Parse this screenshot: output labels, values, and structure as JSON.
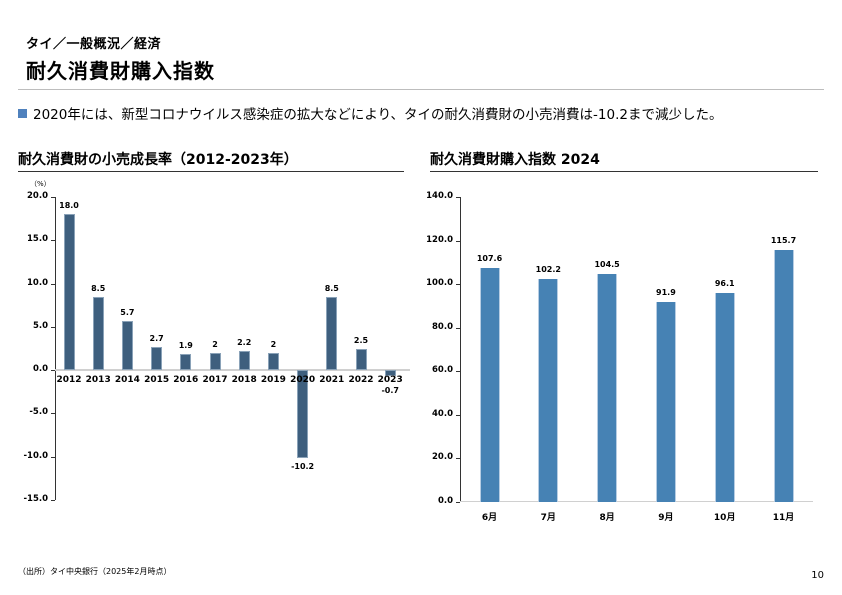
{
  "header": {
    "breadcrumb": "タイ／一般概況／経済",
    "title": "耐久消費財購入指数"
  },
  "summary": {
    "bullet_color": "#4f81bd",
    "text": "2020年には、新型コロナウイルス感染症の拡大などにより、タイの耐久消費財の小売消費は-10.2まで減少した。"
  },
  "left_chart": {
    "title": "耐久消費財の小売成長率（2012-2023年）",
    "unit": "（%）",
    "y_ticks": [
      "20.0",
      "15.0",
      "10.0",
      "5.0",
      "0.0",
      "-5.0",
      "-10.0",
      "-15.0"
    ]
  },
  "right_chart": {
    "title": "耐久消費財購入指数 2024",
    "y_ticks": [
      "140.0",
      "120.0",
      "100.0",
      "80.0",
      "60.0",
      "40.0",
      "20.0",
      "0.0"
    ]
  },
  "chart_data": [
    {
      "type": "bar",
      "title": "耐久消費財の小売成長率（2012-2023年）",
      "xlabel": "",
      "ylabel": "（%）",
      "categories": [
        "2012",
        "2013",
        "2014",
        "2015",
        "2016",
        "2017",
        "2018",
        "2019",
        "2020",
        "2021",
        "2022",
        "2023"
      ],
      "values": [
        18.0,
        8.5,
        5.7,
        2.7,
        1.9,
        2,
        2.2,
        2,
        -10.2,
        8.5,
        2.5,
        -0.7
      ],
      "value_labels": [
        "18.0",
        "8.5",
        "5.7",
        "2.7",
        "1.9",
        "2",
        "2.2",
        "2",
        "-10.2",
        "8.5",
        "2.5",
        "-0.7"
      ],
      "ylim": [
        -15.0,
        20.0
      ],
      "y_tick_step": 5.0,
      "grid": false,
      "legend": null,
      "color": "#3e5f7e"
    },
    {
      "type": "bar",
      "title": "耐久消費財購入指数 2024",
      "xlabel": "",
      "ylabel": "",
      "categories": [
        "6月",
        "7月",
        "8月",
        "9月",
        "10月",
        "11月"
      ],
      "values": [
        107.6,
        102.2,
        104.5,
        91.9,
        96.1,
        115.7
      ],
      "value_labels": [
        "107.6",
        "102.2",
        "104.5",
        "91.9",
        "96.1",
        "115.7"
      ],
      "ylim": [
        0.0,
        140.0
      ],
      "y_tick_step": 20.0,
      "grid": false,
      "legend": null,
      "color": "#4682b4"
    }
  ],
  "footer": {
    "source": "（出所）タイ中央銀行（2025年2月時点）",
    "page_number": "10"
  }
}
